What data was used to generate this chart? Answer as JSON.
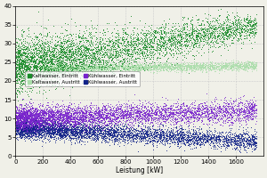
{
  "xlabel": "Leistung [kW]",
  "xlim": [
    0,
    1800
  ],
  "ylim": [
    0,
    40
  ],
  "yticks": [
    0,
    5,
    10,
    15,
    20,
    25,
    30,
    35,
    40
  ],
  "xticks": [
    0,
    200,
    400,
    600,
    800,
    1000,
    1200,
    1400,
    1600
  ],
  "series": {
    "kaltwasser_eintritt": {
      "label": "Kaltwasser, Eintritt",
      "color": "#1a8c2a",
      "n": 5000,
      "x_low": 0,
      "x_high": 1750,
      "y_intercept": 24.0,
      "slope": 0.006,
      "noise_base": 3.5,
      "noise_slope": -0.001
    },
    "kaltwasser_austritt": {
      "label": "Kaltwasser, Austritt",
      "color": "#aaddaa",
      "n": 4000,
      "x_low": 200,
      "x_high": 1750,
      "y_intercept": 23.2,
      "slope": 0.0005,
      "noise_base": 0.6,
      "noise_slope": 0.0
    },
    "kuehlwasser_eintritt": {
      "label": "Kühlwasser, Eintritt",
      "color": "#7722cc",
      "n": 5000,
      "x_low": 0,
      "x_high": 1750,
      "y_intercept": 10.0,
      "slope": 0.0012,
      "noise_base": 1.5,
      "noise_slope": 0.0
    },
    "kuehlwasser_austritt": {
      "label": "Kühlwasser, Austritt",
      "color": "#112288",
      "n": 5000,
      "x_low": 0,
      "x_high": 1750,
      "y_intercept": 7.5,
      "slope": -0.002,
      "noise_base": 1.2,
      "noise_slope": 0.0
    }
  },
  "legend_entries": [
    {
      "label": "Kaltwasser, Eintritt",
      "color": "#1a8c2a"
    },
    {
      "label": "Kaltwasser, Austritt",
      "color": "#aaddaa"
    },
    {
      "label": "Kühlwasser, Eintritt",
      "color": "#7722cc"
    },
    {
      "label": "Kühlwasser, Austritt",
      "color": "#112288"
    }
  ],
  "bg_color": "#f0f0e8",
  "figsize": [
    3.0,
    2.0
  ],
  "dpi": 100
}
